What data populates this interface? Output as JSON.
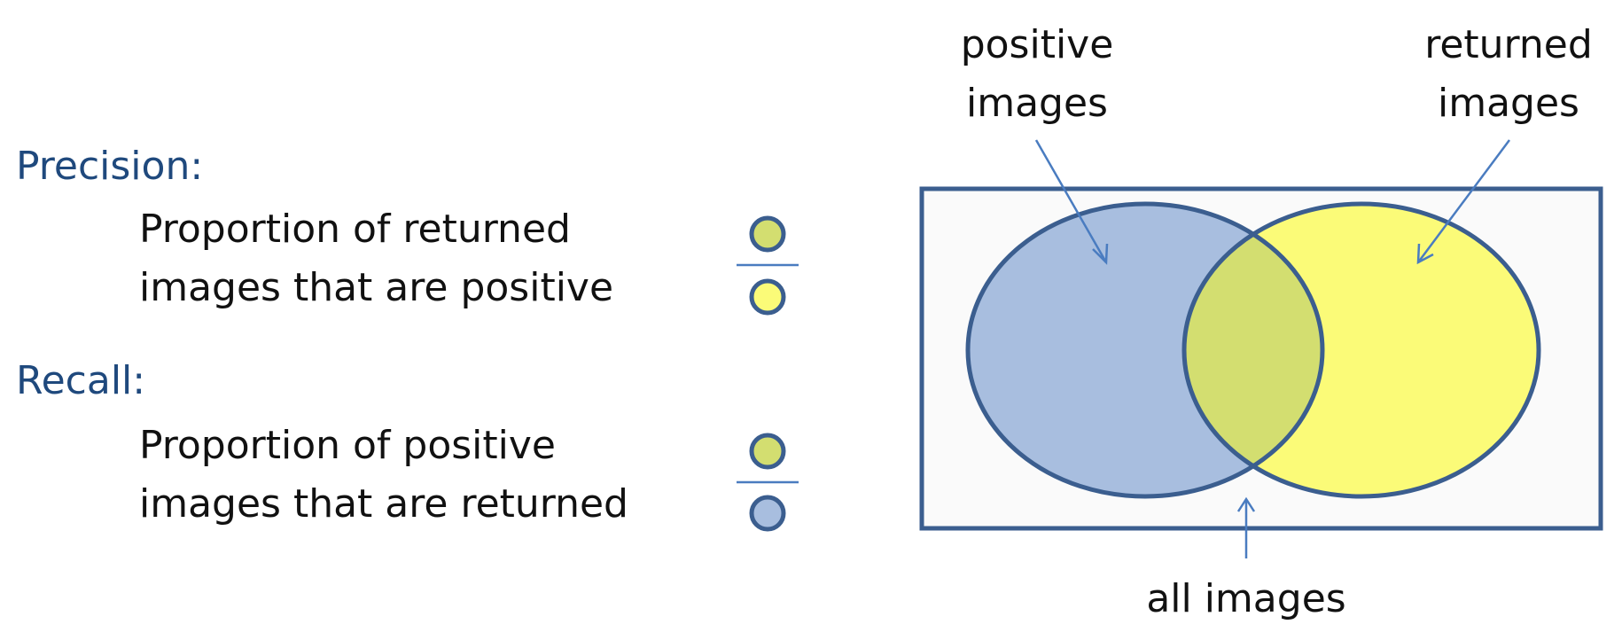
{
  "precision": {
    "title": "Precision:",
    "line1": "Proportion of returned",
    "line2": "images that are positive",
    "numerator": "overlap",
    "denominator": "returned"
  },
  "recall": {
    "title": "Recall:",
    "line1": "Proportion of positive",
    "line2": "images that are returned",
    "numerator": "overlap",
    "denominator": "positive"
  },
  "venn": {
    "positive_line1": "positive",
    "positive_line2": "images",
    "returned_line1": "returned",
    "returned_line2": "images",
    "all_label": "all images"
  },
  "colors": {
    "heading": "#1f497d",
    "outline": "#3b5e8f",
    "positive_fill": "#a8bedf",
    "returned_fill": "#fbfb78",
    "overlap_fill": "#d3de70",
    "arrow": "#4a7cc0",
    "box_fill": "#fafafa"
  }
}
